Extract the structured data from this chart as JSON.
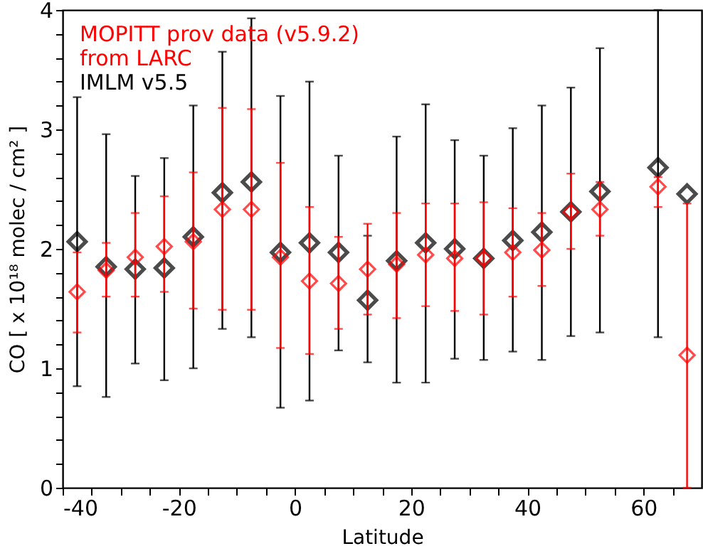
{
  "chart_data": {
    "type": "scatter",
    "xlabel": "Latitude",
    "ylabel": "CO [ x 10¹⁸ molec / cm² ]",
    "x": [
      -37.5,
      -32.5,
      -27.5,
      -22.5,
      -17.5,
      -12.5,
      -7.5,
      -2.5,
      2.5,
      7.5,
      12.5,
      17.5,
      22.5,
      27.5,
      32.5,
      37.5,
      42.5,
      47.5,
      52.5,
      62.5,
      67.5
    ],
    "series": [
      {
        "name": "MOPITT prov data (v5.9.2)\nfrom LARC",
        "color": "#ff0000",
        "values": [
          1.64,
          1.82,
          1.93,
          2.02,
          2.06,
          2.33,
          2.33,
          1.93,
          1.73,
          1.71,
          1.83,
          1.87,
          1.95,
          1.92,
          1.92,
          1.97,
          1.99,
          2.31,
          2.33,
          2.52,
          1.11
        ],
        "errors": [
          [
            1.3,
            1.97
          ],
          [
            1.6,
            2.05
          ],
          [
            1.6,
            2.3
          ],
          [
            1.64,
            2.44
          ],
          [
            1.5,
            2.64
          ],
          [
            1.49,
            3.18
          ],
          [
            1.49,
            3.17
          ],
          [
            1.17,
            2.72
          ],
          [
            1.12,
            2.35
          ],
          [
            1.33,
            2.1
          ],
          [
            1.45,
            2.21
          ],
          [
            1.42,
            2.3
          ],
          [
            1.52,
            2.38
          ],
          [
            1.48,
            2.38
          ],
          [
            1.45,
            2.39
          ],
          [
            1.6,
            2.34
          ],
          [
            1.69,
            2.3
          ],
          [
            2.0,
            2.63
          ],
          [
            2.11,
            2.56
          ],
          [
            2.35,
            2.6
          ],
          [
            0,
            2.38
          ]
        ]
      },
      {
        "name": "IMLM v5.5",
        "color": "#000000",
        "values": [
          2.06,
          1.85,
          1.83,
          1.84,
          2.1,
          2.47,
          2.56,
          1.97,
          2.05,
          1.97,
          1.57,
          1.9,
          2.05,
          2.0,
          1.92,
          2.07,
          2.14,
          2.31,
          2.48,
          2.68,
          2.46
        ],
        "errors": [
          [
            0.85,
            3.27
          ],
          [
            0.76,
            2.96
          ],
          [
            1.04,
            2.61
          ],
          [
            0.9,
            2.76
          ],
          [
            1.0,
            3.2
          ],
          [
            1.33,
            3.65
          ],
          [
            1.26,
            3.93
          ],
          [
            0.67,
            3.28
          ],
          [
            0.73,
            3.4
          ],
          [
            1.15,
            2.78
          ],
          [
            1.05,
            2.11
          ],
          [
            0.88,
            2.94
          ],
          [
            0.88,
            3.21
          ],
          [
            1.08,
            2.91
          ],
          [
            1.07,
            2.78
          ],
          [
            1.14,
            3.01
          ],
          [
            1.07,
            3.2
          ],
          [
            1.27,
            3.35
          ],
          [
            1.3,
            3.68
          ],
          [
            1.26,
            4.0
          ],
          null
        ]
      }
    ],
    "xlim": [
      -40,
      70
    ],
    "xticks": [
      -40,
      {
        "value": -35,
        "label": null
      },
      {
        "value": -30,
        "label": null
      },
      {
        "value": -25,
        "label": null
      },
      -20,
      {
        "value": -15,
        "label": null
      },
      {
        "value": -10,
        "label": null
      },
      {
        "value": -5,
        "label": null
      },
      0,
      {
        "value": 5,
        "label": null
      },
      {
        "value": 10,
        "label": null
      },
      {
        "value": 15,
        "label": null
      },
      20,
      {
        "value": 25,
        "label": null
      },
      {
        "value": 30,
        "label": null
      },
      {
        "value": 35,
        "label": null
      },
      40,
      {
        "value": 45,
        "label": null
      },
      {
        "value": 50,
        "label": null
      },
      {
        "value": 55,
        "label": null
      },
      60,
      {
        "value": 65,
        "label": null
      }
    ],
    "ylim": [
      0,
      4
    ],
    "yticks": [
      0,
      {
        "value": 0.2,
        "label": null
      },
      {
        "value": 0.4,
        "label": null
      },
      {
        "value": 0.6,
        "label": null
      },
      {
        "value": 0.8,
        "label": null
      },
      1,
      {
        "value": 1.2,
        "label": null
      },
      {
        "value": 1.4,
        "label": null
      },
      {
        "value": 1.6,
        "label": null
      },
      {
        "value": 1.8,
        "label": null
      },
      2,
      {
        "value": 2.2,
        "label": null
      },
      {
        "value": 2.4,
        "label": null
      },
      {
        "value": 2.6,
        "label": null
      },
      {
        "value": 2.8,
        "label": null
      },
      3,
      {
        "value": 3.2,
        "label": null
      },
      {
        "value": 3.4,
        "label": null
      },
      {
        "value": 3.6,
        "label": null
      },
      {
        "value": 3.8,
        "label": null
      },
      4
    ],
    "grid": false,
    "legend": "top left",
    "marker": "diamond"
  }
}
